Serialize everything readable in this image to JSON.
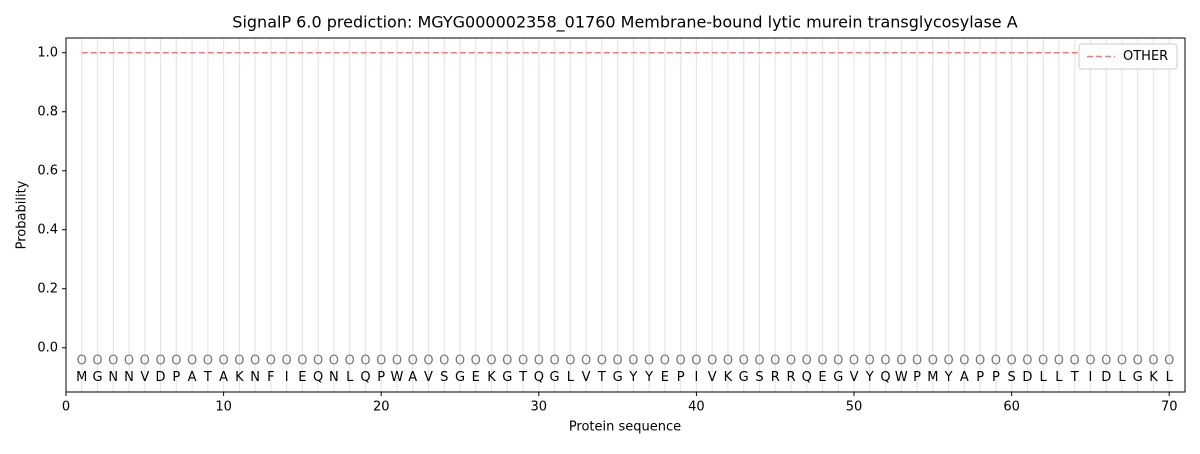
{
  "chart_data": {
    "type": "line",
    "title": "SignalP 6.0 prediction: MGYG000002358_01760 Membrane-bound lytic murein transglycosylase A",
    "xlabel": "Protein sequence",
    "ylabel": "Probability",
    "x": [
      1,
      2,
      3,
      4,
      5,
      6,
      7,
      8,
      9,
      10,
      11,
      12,
      13,
      14,
      15,
      16,
      17,
      18,
      19,
      20,
      21,
      22,
      23,
      24,
      25,
      26,
      27,
      28,
      29,
      30,
      31,
      32,
      33,
      34,
      35,
      36,
      37,
      38,
      39,
      40,
      41,
      42,
      43,
      44,
      45,
      46,
      47,
      48,
      49,
      50,
      51,
      52,
      53,
      54,
      55,
      56,
      57,
      58,
      59,
      60,
      61,
      62,
      63,
      64,
      65,
      66,
      67,
      68,
      69,
      70
    ],
    "residues": [
      "M",
      "G",
      "N",
      "N",
      "V",
      "D",
      "P",
      "A",
      "T",
      "A",
      "K",
      "N",
      "F",
      "I",
      "E",
      "Q",
      "N",
      "L",
      "Q",
      "P",
      "W",
      "A",
      "V",
      "S",
      "G",
      "E",
      "K",
      "G",
      "T",
      "Q",
      "G",
      "L",
      "V",
      "T",
      "G",
      "Y",
      "Y",
      "E",
      "P",
      "I",
      "V",
      "K",
      "G",
      "S",
      "R",
      "R",
      "Q",
      "E",
      "G",
      "V",
      "Y",
      "Q",
      "W",
      "P",
      "M",
      "Y",
      "A",
      "P",
      "P",
      "S",
      "D",
      "L",
      "L",
      "T",
      "I",
      "D",
      "L",
      "G",
      "K",
      "L"
    ],
    "predictions": [
      "O",
      "O",
      "O",
      "O",
      "O",
      "O",
      "O",
      "O",
      "O",
      "O",
      "O",
      "O",
      "O",
      "O",
      "O",
      "O",
      "O",
      "O",
      "O",
      "O",
      "O",
      "O",
      "O",
      "O",
      "O",
      "O",
      "O",
      "O",
      "O",
      "O",
      "O",
      "O",
      "O",
      "O",
      "O",
      "O",
      "O",
      "O",
      "O",
      "O",
      "O",
      "O",
      "O",
      "O",
      "O",
      "O",
      "O",
      "O",
      "O",
      "O",
      "O",
      "O",
      "O",
      "O",
      "O",
      "O",
      "O",
      "O",
      "O",
      "O",
      "O",
      "O",
      "O",
      "O",
      "O",
      "O",
      "O",
      "O",
      "O",
      "O"
    ],
    "series": [
      {
        "name": "OTHER",
        "color": "#ef7b7b",
        "values": [
          1,
          1,
          1,
          1,
          1,
          1,
          1,
          1,
          1,
          1,
          1,
          1,
          1,
          1,
          1,
          1,
          1,
          1,
          1,
          1,
          1,
          1,
          1,
          1,
          1,
          1,
          1,
          1,
          1,
          1,
          1,
          1,
          1,
          1,
          1,
          1,
          1,
          1,
          1,
          1,
          1,
          1,
          1,
          1,
          1,
          1,
          1,
          1,
          1,
          1,
          1,
          1,
          1,
          1,
          1,
          1,
          1,
          1,
          1,
          1,
          1,
          1,
          1,
          1,
          1,
          1,
          1,
          1,
          1,
          1
        ]
      }
    ],
    "xlim": [
      0,
      71
    ],
    "ylim": [
      -0.15,
      1.05
    ],
    "xticks": [
      0,
      10,
      20,
      30,
      40,
      50,
      60,
      70
    ],
    "yticks": [
      {
        "value": 0,
        "label": "0.0"
      },
      {
        "value": 0.2,
        "label": "0.2"
      },
      {
        "value": 0.4,
        "label": "0.4"
      },
      {
        "value": 0.6,
        "label": "0.6"
      },
      {
        "value": 0.8,
        "label": "0.8"
      },
      {
        "value": 1,
        "label": "1.0"
      }
    ],
    "legend": "upper right"
  }
}
